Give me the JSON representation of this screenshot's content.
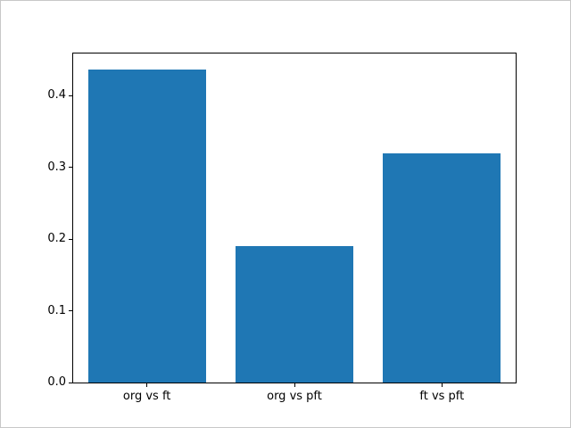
{
  "chart_data": {
    "type": "bar",
    "categories": [
      "org vs ft",
      "org vs pft",
      "ft vs pft"
    ],
    "values": [
      0.437,
      0.19,
      0.32
    ],
    "title": "",
    "xlabel": "",
    "ylabel": "",
    "ylim": [
      0,
      0.459
    ],
    "yticks": [
      0.0,
      0.1,
      0.2,
      0.3,
      0.4
    ],
    "ytick_format_decimals": 1,
    "bar_color": "#1f77b4",
    "bar_width_fraction": 0.8,
    "grid": false,
    "legend": null
  }
}
